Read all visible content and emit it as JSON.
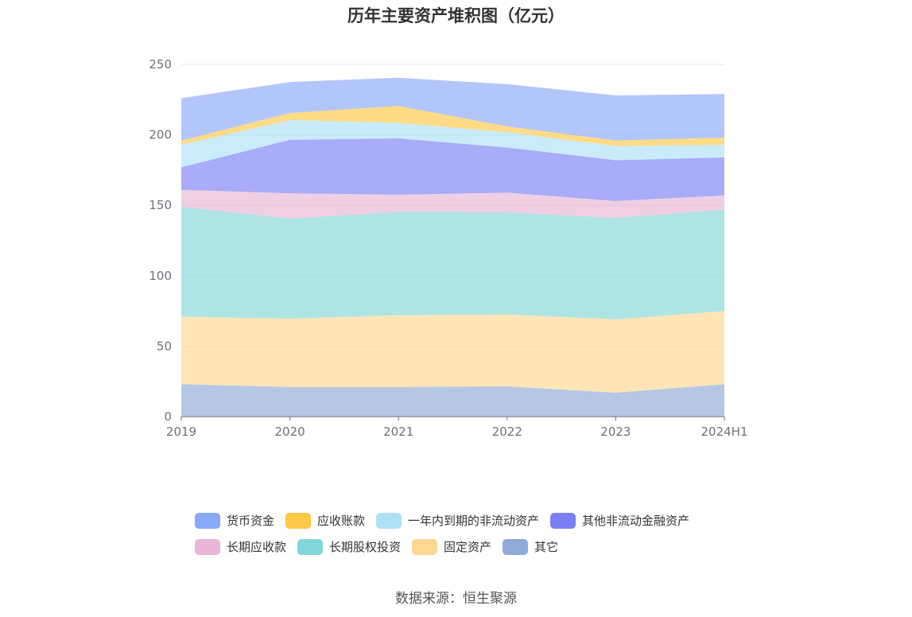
{
  "chart_data": {
    "type": "area",
    "title": "历年主要资产堆积图（亿元）",
    "categories": [
      "2019",
      "2020",
      "2021",
      "2022",
      "2023",
      "2024H1"
    ],
    "ylim": [
      0,
      250
    ],
    "yticks": [
      0,
      50,
      100,
      150,
      200,
      250
    ],
    "grid": true,
    "stacked": true,
    "legend_position": "bottom",
    "series": [
      {
        "name": "其它",
        "color": "#8fa9d9",
        "values": [
          23,
          21,
          21,
          21.5,
          17,
          23
        ]
      },
      {
        "name": "固定资产",
        "color": "#ffd78f",
        "values": [
          48,
          48.5,
          51,
          51,
          52,
          52
        ]
      },
      {
        "name": "长期股权投资",
        "color": "#82d6d6",
        "values": [
          78,
          71,
          73.5,
          72.5,
          72,
          72
        ]
      },
      {
        "name": "长期应收款",
        "color": "#e8b5d6",
        "values": [
          12,
          18,
          12,
          14,
          12,
          10
        ]
      },
      {
        "name": "其他非流动金融资产",
        "color": "#7b7ff5",
        "values": [
          16,
          38,
          40,
          32,
          29,
          27
        ]
      },
      {
        "name": "一年内到期的非流动资产",
        "color": "#aee0f7",
        "values": [
          16,
          14,
          11,
          11,
          10,
          9
        ]
      },
      {
        "name": "应收账款",
        "color": "#ffc845",
        "values": [
          3,
          5,
          12,
          4,
          4,
          5
        ]
      },
      {
        "name": "货币资金",
        "color": "#8aa8f8",
        "values": [
          30,
          22,
          20,
          30,
          32,
          31
        ]
      }
    ]
  },
  "source": "数据来源：恒生聚源"
}
